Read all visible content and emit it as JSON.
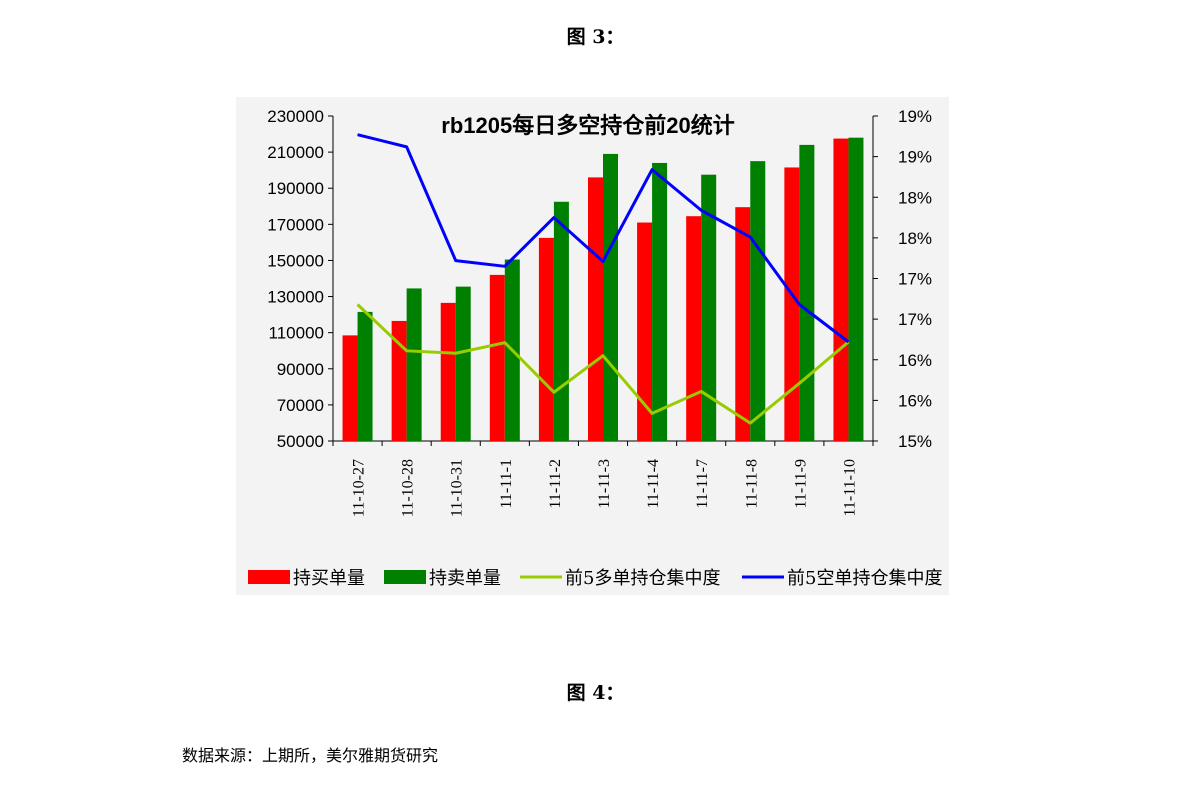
{
  "captions": {
    "fig3": "图 3：",
    "fig4": "图 4："
  },
  "source_note": "数据来源：上期所，美尔雅期货研究",
  "colors": {
    "buy": "#ff0000",
    "sell": "#008000",
    "long_concentration": "#99cc00",
    "short_concentration": "#0000ff"
  },
  "chart_data": {
    "type": "bar",
    "title": "rb1205每日多空持仓前20统计",
    "categories": [
      "11-10-27",
      "11-10-28",
      "11-10-31",
      "11-11-1",
      "11-11-2",
      "11-11-3",
      "11-11-4",
      "11-11-7",
      "11-11-8",
      "11-11-9",
      "11-11-10"
    ],
    "y_left": {
      "min": 50000,
      "max": 230000,
      "ticks": [
        "230000",
        "210000",
        "190000",
        "170000",
        "150000",
        "130000",
        "110000",
        "90000",
        "70000",
        "50000"
      ],
      "tick_values": [
        230000,
        210000,
        190000,
        170000,
        150000,
        130000,
        110000,
        90000,
        70000,
        50000
      ]
    },
    "y_right": {
      "min": 0.15,
      "max": 0.19,
      "ticks": [
        "19%",
        "19%",
        "18%",
        "18%",
        "17%",
        "17%",
        "16%",
        "16%",
        "15%"
      ],
      "tick_values": [
        0.19,
        0.185,
        0.18,
        0.175,
        0.17,
        0.165,
        0.16,
        0.155,
        0.15
      ]
    },
    "series": [
      {
        "name": "持买单量",
        "type": "bar",
        "axis": "left",
        "color": "#ff0000",
        "values": [
          108500,
          116500,
          126500,
          142000,
          162500,
          196000,
          171000,
          174500,
          179500,
          201500,
          217500
        ]
      },
      {
        "name": "持卖单量",
        "type": "bar",
        "axis": "left",
        "color": "#008000",
        "values": [
          121500,
          134500,
          135500,
          150500,
          182500,
          209000,
          204000,
          197500,
          205000,
          214000,
          218000
        ]
      },
      {
        "name": "前5多单持仓集中度",
        "type": "line",
        "axis": "right",
        "color": "#99cc00",
        "values": [
          0.1668,
          0.1611,
          0.1608,
          0.1621,
          0.156,
          0.1605,
          0.1534,
          0.1561,
          0.1522,
          0.1571,
          0.1622
        ]
      },
      {
        "name": "前5空单持仓集中度",
        "type": "line",
        "axis": "right",
        "color": "#0000ff",
        "values": [
          0.1877,
          0.1862,
          0.1722,
          0.1715,
          0.1775,
          0.1721,
          0.1834,
          0.1784,
          0.1751,
          0.1668,
          0.1622
        ]
      }
    ],
    "legend_position": "bottom",
    "grid": false
  }
}
